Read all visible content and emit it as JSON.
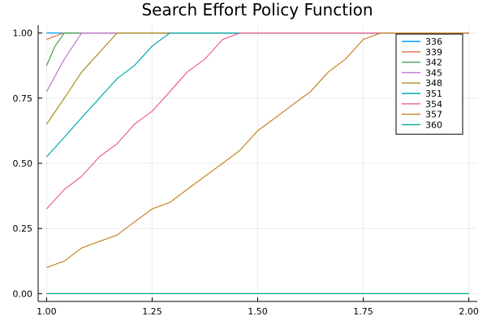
{
  "chart_data": {
    "type": "line",
    "title": "Search Effort Policy Function",
    "xlabel": "",
    "ylabel": "",
    "xlim": [
      0.98,
      2.02
    ],
    "ylim": [
      -0.03,
      1.03
    ],
    "xticks": [
      1.0,
      1.25,
      1.5,
      1.75,
      2.0
    ],
    "xtick_labels": [
      "1.00",
      "1.25",
      "1.50",
      "1.75",
      "2.00"
    ],
    "yticks": [
      0.0,
      0.25,
      0.5,
      0.75,
      1.0
    ],
    "ytick_labels": [
      "0.00",
      "0.25",
      "0.50",
      "0.75",
      "1.00"
    ],
    "grid": true,
    "legend_position": "top-right",
    "series": [
      {
        "name": "336",
        "color": "#009AFA",
        "x": [
          1.0,
          2.0
        ],
        "y": [
          1.0,
          1.0
        ]
      },
      {
        "name": "339",
        "color": "#E36F47",
        "x": [
          1.0,
          1.04,
          2.0
        ],
        "y": [
          0.975,
          1.0,
          1.0
        ]
      },
      {
        "name": "342",
        "color": "#3EA44E",
        "x": [
          1.0,
          1.02,
          1.042,
          2.0
        ],
        "y": [
          0.875,
          0.95,
          1.0,
          1.0
        ]
      },
      {
        "name": "345",
        "color": "#C371D2",
        "x": [
          1.0,
          1.042,
          1.083,
          2.0
        ],
        "y": [
          0.775,
          0.9,
          1.0,
          1.0
        ]
      },
      {
        "name": "348",
        "color": "#AC8E18",
        "x": [
          1.0,
          1.042,
          1.083,
          1.125,
          1.167,
          2.0
        ],
        "y": [
          0.65,
          0.75,
          0.85,
          0.925,
          1.0,
          1.0
        ]
      },
      {
        "name": "351",
        "color": "#00A9AD",
        "x": [
          1.0,
          1.042,
          1.083,
          1.125,
          1.167,
          1.208,
          1.25,
          1.292,
          2.0
        ],
        "y": [
          0.525,
          0.6,
          0.675,
          0.75,
          0.825,
          0.875,
          0.95,
          1.0,
          1.0
        ]
      },
      {
        "name": "354",
        "color": "#ED5E93",
        "x": [
          1.0,
          1.042,
          1.083,
          1.125,
          1.167,
          1.208,
          1.25,
          1.292,
          1.333,
          1.375,
          1.417,
          1.458,
          2.0
        ],
        "y": [
          0.325,
          0.4,
          0.45,
          0.525,
          0.575,
          0.65,
          0.7,
          0.775,
          0.85,
          0.9,
          0.975,
          1.0,
          1.0
        ]
      },
      {
        "name": "357",
        "color": "#C68225",
        "x": [
          1.0,
          1.042,
          1.083,
          1.125,
          1.167,
          1.208,
          1.25,
          1.292,
          1.333,
          1.375,
          1.417,
          1.458,
          1.5,
          1.542,
          1.583,
          1.625,
          1.667,
          1.708,
          1.75,
          1.792,
          2.0
        ],
        "y": [
          0.1,
          0.125,
          0.175,
          0.2,
          0.225,
          0.275,
          0.325,
          0.35,
          0.4,
          0.45,
          0.5,
          0.55,
          0.625,
          0.675,
          0.725,
          0.775,
          0.85,
          0.9,
          0.975,
          1.0,
          1.0
        ]
      },
      {
        "name": "360",
        "color": "#00A98D",
        "x": [
          1.0,
          2.0
        ],
        "y": [
          0.0,
          0.0
        ]
      }
    ]
  }
}
